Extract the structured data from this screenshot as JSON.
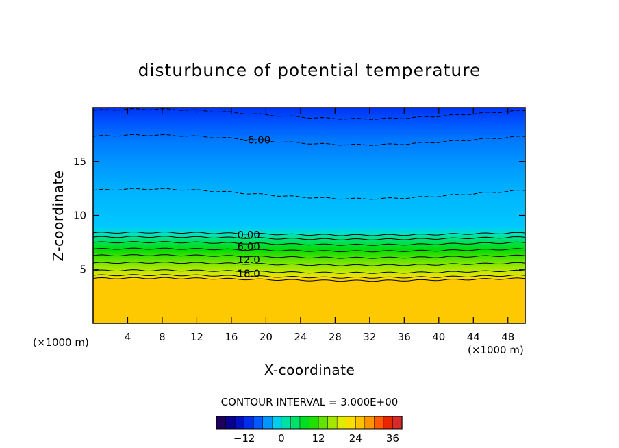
{
  "chart_data": {
    "type": "heatmap",
    "title": "disturbunce of potential temperature",
    "xlabel": "X-coordinate",
    "ylabel": "Z-coordinate",
    "x_unit": "(×1000 m)",
    "y_unit": "(×1000 m)",
    "xlim": [
      0,
      50
    ],
    "ylim": [
      0,
      20
    ],
    "x_ticks": [
      4,
      8,
      12,
      16,
      20,
      24,
      28,
      32,
      36,
      40,
      44,
      48
    ],
    "y_ticks": [
      5,
      10,
      15
    ],
    "contour_interval_text": "CONTOUR INTERVAL = 3.000E+00",
    "contour_labels": [
      {
        "text": "-6.00",
        "x": 19,
        "z": 17.0
      },
      {
        "text": "0.00",
        "x": 18,
        "z": 8.2
      },
      {
        "text": "6.00",
        "x": 18,
        "z": 7.1
      },
      {
        "text": "12.0",
        "x": 18,
        "z": 5.9
      },
      {
        "text": "18.0",
        "x": 18,
        "z": 4.6
      }
    ],
    "field_profile": [
      {
        "z": 0.0,
        "value": 25
      },
      {
        "z": 4.0,
        "value": 25
      },
      {
        "z": 4.2,
        "value": 22
      },
      {
        "z": 4.8,
        "value": 18
      },
      {
        "z": 5.5,
        "value": 15
      },
      {
        "z": 6.2,
        "value": 12
      },
      {
        "z": 6.8,
        "value": 9
      },
      {
        "z": 7.4,
        "value": 6
      },
      {
        "z": 7.9,
        "value": 3
      },
      {
        "z": 8.3,
        "value": 0
      },
      {
        "z": 9.0,
        "value": -2
      },
      {
        "z": 12.0,
        "value": -3
      },
      {
        "z": 14.0,
        "value": -4
      },
      {
        "z": 17.0,
        "value": -6
      },
      {
        "z": 18.8,
        "value": -8
      },
      {
        "z": 20.0,
        "value": -10
      }
    ],
    "colorbar": {
      "min": -21,
      "max": 39,
      "step": 3,
      "ticks": [
        -12,
        0,
        12,
        24,
        36
      ],
      "tick_labels": [
        "−12",
        "0",
        "12",
        "24",
        "36"
      ]
    },
    "grid": false
  }
}
